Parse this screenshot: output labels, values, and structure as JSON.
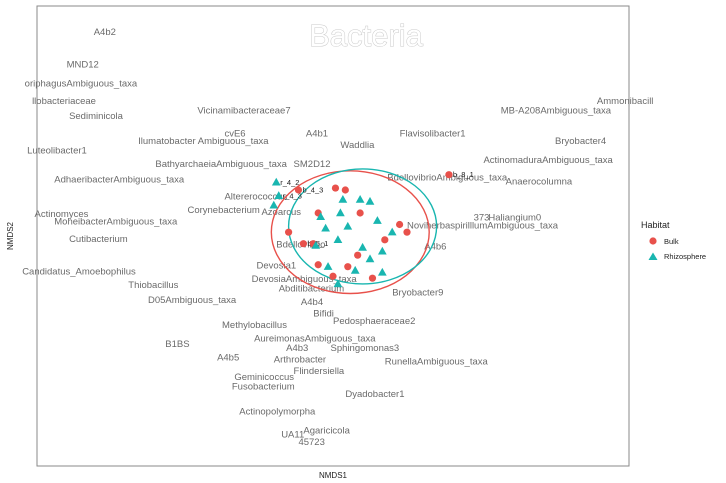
{
  "chart_data": {
    "type": "scatter",
    "title": "Bacteria",
    "xlabel": "NMDS1",
    "ylabel": "NMDS2",
    "grid": false,
    "legend": {
      "title": "Habitat",
      "position": "right",
      "entries": [
        "Bulk",
        "Rhizosphere"
      ]
    },
    "colors": {
      "Bulk": "#e8514b",
      "Rhizosphere": "#19b6b0",
      "frame": "#8a8a8a"
    },
    "xlim": [
      -1.2,
      1.2
    ],
    "ylim": [
      -1.2,
      1.2
    ],
    "series": [
      {
        "name": "Bulk",
        "marker": "circle",
        "points": [
          {
            "x": -0.14,
            "y": 0.24,
            "label": "b_4_3"
          },
          {
            "x": 0.01,
            "y": 0.25,
            "label": ""
          },
          {
            "x": 0.05,
            "y": 0.24,
            "label": ""
          },
          {
            "x": 0.47,
            "y": 0.32,
            "label": "b_8_1"
          },
          {
            "x": -0.06,
            "y": 0.12,
            "label": ""
          },
          {
            "x": 0.11,
            "y": 0.12,
            "label": ""
          },
          {
            "x": -0.18,
            "y": 0.02,
            "label": ""
          },
          {
            "x": -0.12,
            "y": -0.04,
            "label": "b_5_1"
          },
          {
            "x": -0.08,
            "y": -0.04,
            "label": ""
          },
          {
            "x": 0.21,
            "y": -0.02,
            "label": ""
          },
          {
            "x": 0.27,
            "y": 0.06,
            "label": ""
          },
          {
            "x": 0.3,
            "y": 0.02,
            "label": ""
          },
          {
            "x": 0.1,
            "y": -0.1,
            "label": ""
          },
          {
            "x": 0.06,
            "y": -0.16,
            "label": ""
          },
          {
            "x": 0.16,
            "y": -0.22,
            "label": ""
          },
          {
            "x": -0.06,
            "y": -0.15,
            "label": ""
          },
          {
            "x": 0.0,
            "y": -0.21,
            "label": ""
          }
        ]
      },
      {
        "name": "Rhizosphere",
        "marker": "triangle",
        "points": [
          {
            "x": -0.23,
            "y": 0.28,
            "label": "r_4_2"
          },
          {
            "x": -0.22,
            "y": 0.21,
            "label": "r_4_3"
          },
          {
            "x": -0.24,
            "y": 0.16,
            "label": ""
          },
          {
            "x": 0.04,
            "y": 0.19,
            "label": ""
          },
          {
            "x": 0.11,
            "y": 0.19,
            "label": ""
          },
          {
            "x": 0.15,
            "y": 0.18,
            "label": ""
          },
          {
            "x": -0.05,
            "y": 0.1,
            "label": ""
          },
          {
            "x": 0.03,
            "y": 0.12,
            "label": ""
          },
          {
            "x": 0.18,
            "y": 0.08,
            "label": ""
          },
          {
            "x": -0.03,
            "y": 0.04,
            "label": ""
          },
          {
            "x": 0.06,
            "y": 0.05,
            "label": ""
          },
          {
            "x": 0.24,
            "y": 0.02,
            "label": ""
          },
          {
            "x": -0.07,
            "y": -0.05,
            "label": ""
          },
          {
            "x": 0.02,
            "y": -0.02,
            "label": ""
          },
          {
            "x": 0.12,
            "y": -0.06,
            "label": ""
          },
          {
            "x": 0.2,
            "y": -0.08,
            "label": ""
          },
          {
            "x": -0.02,
            "y": -0.16,
            "label": ""
          },
          {
            "x": 0.09,
            "y": -0.18,
            "label": ""
          },
          {
            "x": 0.15,
            "y": -0.12,
            "label": ""
          },
          {
            "x": 0.02,
            "y": -0.25,
            "label": ""
          },
          {
            "x": 0.2,
            "y": -0.19,
            "label": ""
          }
        ]
      }
    ],
    "ellipses": [
      {
        "series": "Bulk",
        "cx": 0.07,
        "cy": 0.02,
        "rx": 0.32,
        "ry": 0.32
      },
      {
        "series": "Rhizosphere",
        "cx": 0.12,
        "cy": 0.05,
        "rx": 0.3,
        "ry": 0.3
      }
    ],
    "taxa": [
      {
        "text": "A4b2",
        "x": -0.97,
        "y": 1.05
      },
      {
        "text": "MND12",
        "x": -1.08,
        "y": 0.88
      },
      {
        "text": "oriphagusAmbiguous_taxa",
        "x": -1.25,
        "y": 0.78
      },
      {
        "text": "llobacteriaceae",
        "x": -1.22,
        "y": 0.69
      },
      {
        "text": "Sediminicola",
        "x": -1.07,
        "y": 0.61
      },
      {
        "text": "Vicinamibacteraceae7",
        "x": -0.55,
        "y": 0.64
      },
      {
        "text": "cvE6",
        "x": -0.44,
        "y": 0.52
      },
      {
        "text": "A4b1",
        "x": -0.11,
        "y": 0.52
      },
      {
        "text": "Ilumatobacter Ambiguous_taxa",
        "x": -0.79,
        "y": 0.48
      },
      {
        "text": "Waddlia",
        "x": 0.03,
        "y": 0.46
      },
      {
        "text": "Flavisolibacter1",
        "x": 0.27,
        "y": 0.52
      },
      {
        "text": "Luteolibacter1",
        "x": -1.24,
        "y": 0.43
      },
      {
        "text": "MB-A208Ambiguous_taxa",
        "x": 0.68,
        "y": 0.64
      },
      {
        "text": "Ammonibacill",
        "x": 1.07,
        "y": 0.69
      },
      {
        "text": "Bryobacter4",
        "x": 0.9,
        "y": 0.48
      },
      {
        "text": "ActinomaduraAmbiguous_taxa",
        "x": 0.61,
        "y": 0.38
      },
      {
        "text": "BathyarchaeiaAmbiguous_taxa",
        "x": -0.72,
        "y": 0.36
      },
      {
        "text": "SM2D12",
        "x": -0.16,
        "y": 0.36
      },
      {
        "text": "BdellovibrioAmbiguous_taxa",
        "x": 0.22,
        "y": 0.29
      },
      {
        "text": "Anaerocolumna",
        "x": 0.7,
        "y": 0.27
      },
      {
        "text": "AdhaeribacterAmbiguous_taxa",
        "x": -1.13,
        "y": 0.28
      },
      {
        "text": "Altererococcus",
        "x": -0.44,
        "y": 0.19
      },
      {
        "text": "Corynebacterium",
        "x": -0.59,
        "y": 0.12
      },
      {
        "text": "Azoarcus",
        "x": -0.29,
        "y": 0.11
      },
      {
        "text": "Actinomyces",
        "x": -1.21,
        "y": 0.1
      },
      {
        "text": "MoheibacterAmbiguous_taxa",
        "x": -1.13,
        "y": 0.06
      },
      {
        "text": "373",
        "x": 0.57,
        "y": 0.08
      },
      {
        "text": "Haliangium0",
        "x": 0.63,
        "y": 0.08
      },
      {
        "text": "NoviherbaspirilllumAmbiguous_taxa",
        "x": 0.3,
        "y": 0.04
      },
      {
        "text": "Cutibacterium",
        "x": -1.07,
        "y": -0.03
      },
      {
        "text": "Bdellovibrio",
        "x": -0.23,
        "y": -0.06
      },
      {
        "text": "A4b6",
        "x": 0.37,
        "y": -0.07
      },
      {
        "text": "Candidatus_Amoebophilus",
        "x": -1.26,
        "y": -0.2
      },
      {
        "text": "Devosia1",
        "x": -0.31,
        "y": -0.17
      },
      {
        "text": "Thiobacillus",
        "x": -0.83,
        "y": -0.27
      },
      {
        "text": "DevosiaAmbiguous_taxa",
        "x": -0.33,
        "y": -0.24
      },
      {
        "text": "Abditibacterium",
        "x": -0.22,
        "y": -0.29
      },
      {
        "text": "D05Ambiguous_taxa",
        "x": -0.75,
        "y": -0.35
      },
      {
        "text": "A4b4",
        "x": -0.13,
        "y": -0.36
      },
      {
        "text": "Bryobacter9",
        "x": 0.24,
        "y": -0.31
      },
      {
        "text": "Bifidi",
        "x": -0.08,
        "y": -0.42
      },
      {
        "text": "Pedosphaeraceae2",
        "x": 0.0,
        "y": -0.46
      },
      {
        "text": "Methylobacillus",
        "x": -0.45,
        "y": -0.48
      },
      {
        "text": "AureimonasAmbiguous_taxa",
        "x": -0.32,
        "y": -0.55
      },
      {
        "text": "B1BS",
        "x": -0.68,
        "y": -0.58
      },
      {
        "text": "A4b3",
        "x": -0.19,
        "y": -0.6
      },
      {
        "text": "Sphingomonas3",
        "x": -0.01,
        "y": -0.6
      },
      {
        "text": "A4b5",
        "x": -0.47,
        "y": -0.65
      },
      {
        "text": "Arthrobacter",
        "x": -0.24,
        "y": -0.66
      },
      {
        "text": "RunellaAmbiguous_taxa",
        "x": 0.21,
        "y": -0.67
      },
      {
        "text": "Flindersiella",
        "x": -0.16,
        "y": -0.72
      },
      {
        "text": "Geminicoccus",
        "x": -0.4,
        "y": -0.75
      },
      {
        "text": "Fusobacterium",
        "x": -0.41,
        "y": -0.8
      },
      {
        "text": "Dyadobacter1",
        "x": 0.05,
        "y": -0.84
      },
      {
        "text": "Actinopolymorpha",
        "x": -0.38,
        "y": -0.93
      },
      {
        "text": "Agaricicola",
        "x": -0.12,
        "y": -1.03
      },
      {
        "text": "UA11",
        "x": -0.21,
        "y": -1.05
      },
      {
        "text": "45723",
        "x": -0.14,
        "y": -1.09
      }
    ]
  }
}
